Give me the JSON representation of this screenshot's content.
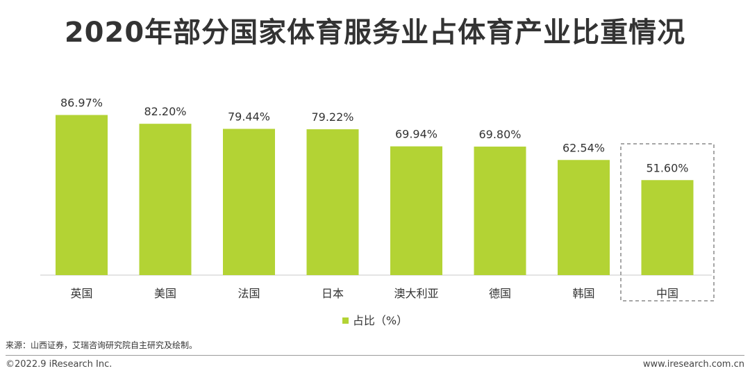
{
  "title": "2020年部分国家体育服务业占体育产业比重情况",
  "chart_data": {
    "type": "bar",
    "categories": [
      "英国",
      "美国",
      "法国",
      "日本",
      "澳大利亚",
      "德国",
      "韩国",
      "中国"
    ],
    "series": [
      {
        "name": "占比（%）",
        "values": [
          86.97,
          82.2,
          79.44,
          79.22,
          69.94,
          69.8,
          62.54,
          51.6
        ],
        "labels": [
          "86.97%",
          "82.20%",
          "79.44%",
          "79.22%",
          "69.94%",
          "69.80%",
          "62.54%",
          "51.60%"
        ],
        "color": "#b3d334"
      }
    ],
    "ylim": [
      0,
      100
    ],
    "grid": false,
    "legend_position": "bottom",
    "highlight_category": "中国"
  },
  "source": "来源：山西证券，艾瑞咨询研究院自主研究及绘制。",
  "footer": {
    "copyright": "©2022.9 iResearch Inc.",
    "website": "www.iresearch.com.cn"
  }
}
